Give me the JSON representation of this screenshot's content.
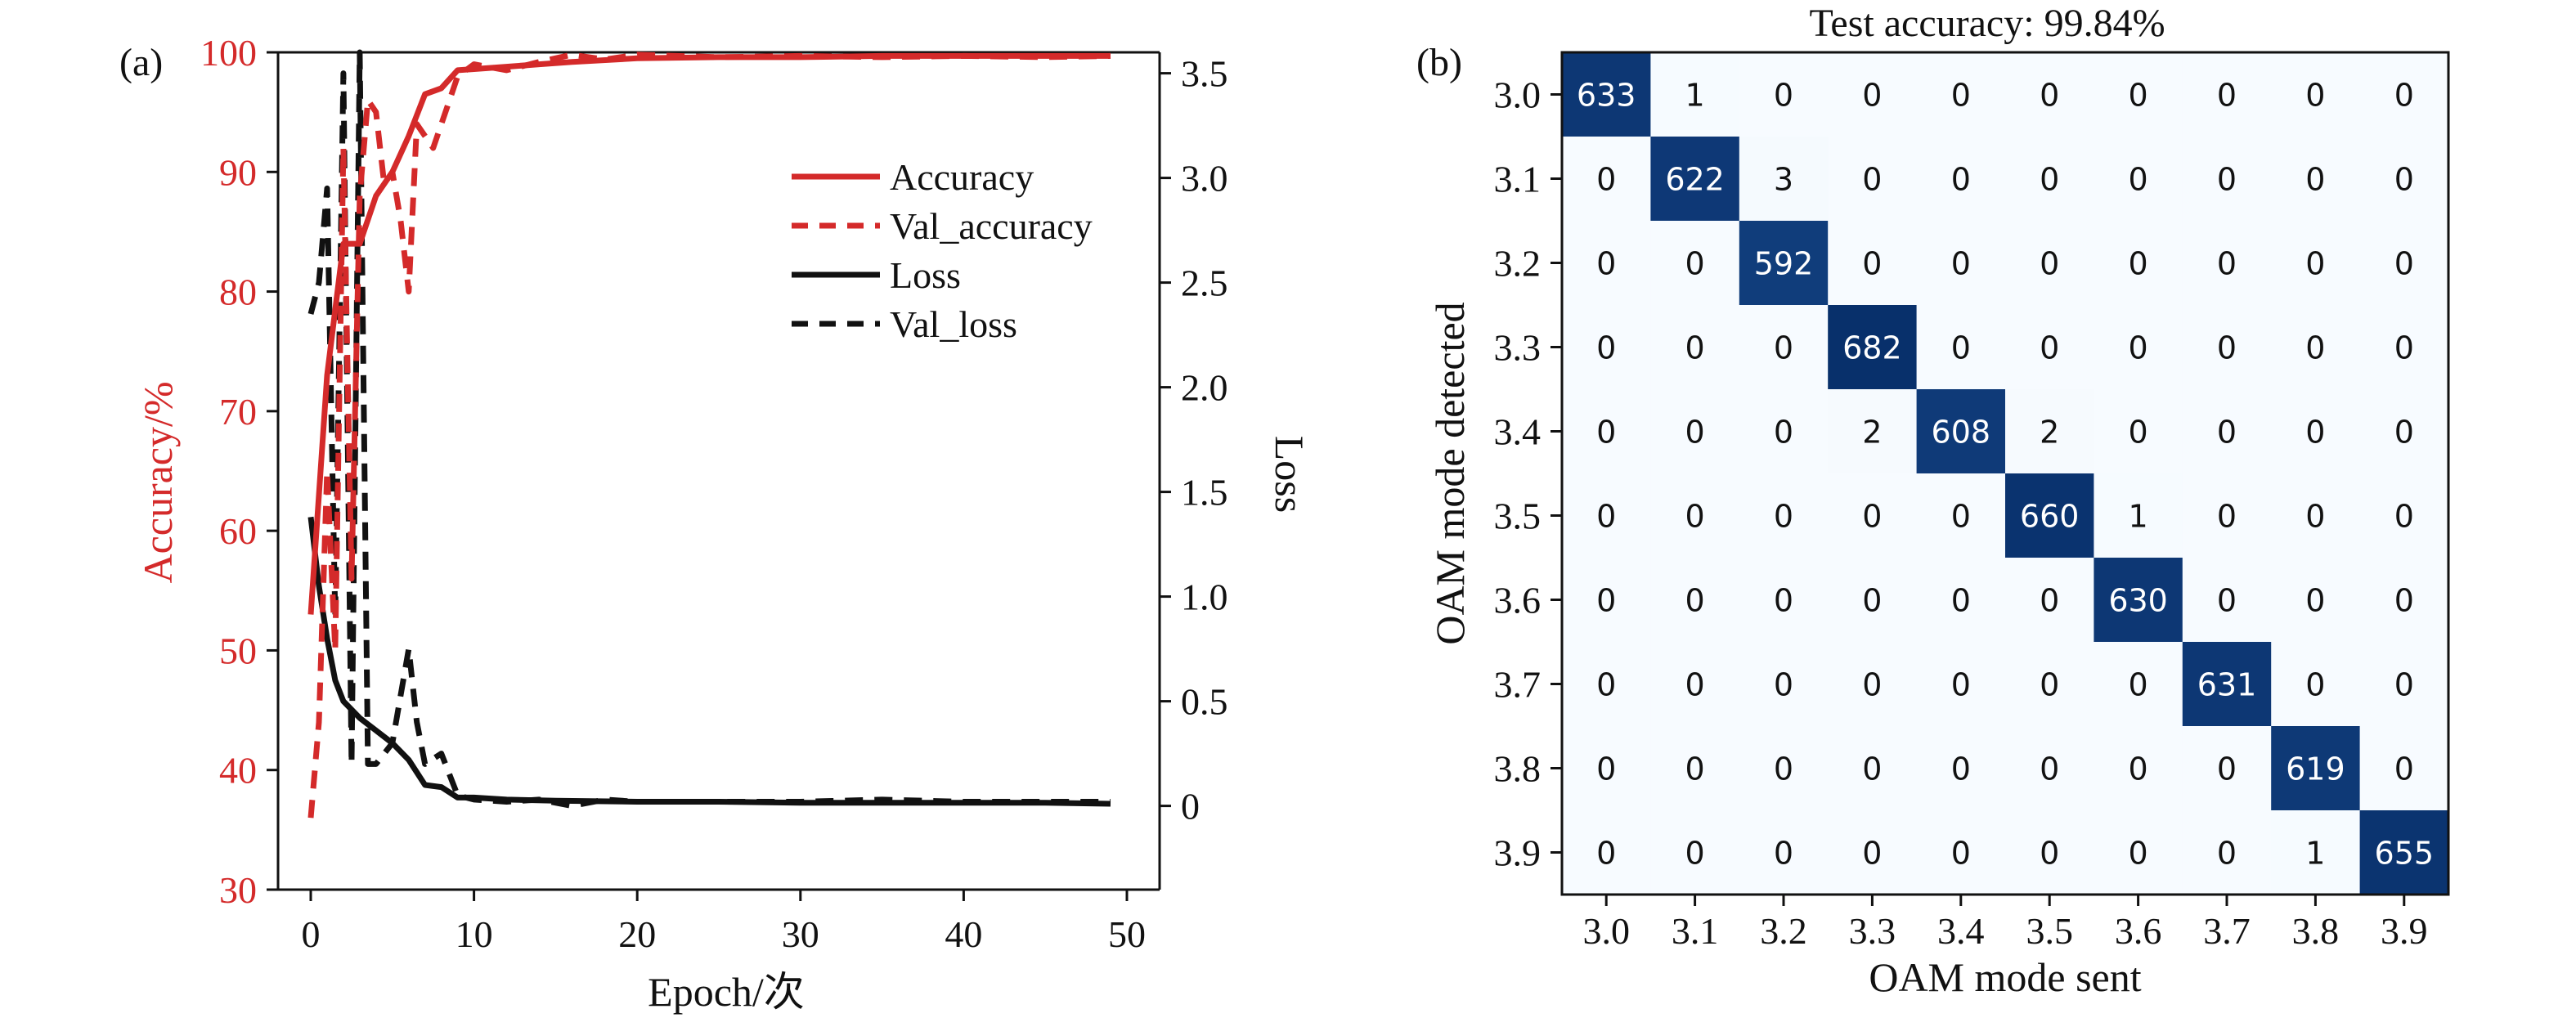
{
  "chart_data": [
    {
      "type": "line",
      "panel_label": "(a)",
      "xlabel": "Epoch/次",
      "ylabel_left": "Accuracy/%",
      "ylabel_right": "Loss",
      "xlim": [
        0,
        50
      ],
      "ylim_left": [
        30,
        100
      ],
      "ylim_right": [
        -0.4,
        3.6
      ],
      "x_ticks": [
        0,
        10,
        20,
        30,
        40,
        50
      ],
      "y_ticks_left": [
        30,
        40,
        50,
        60,
        70,
        80,
        90,
        100
      ],
      "y_ticks_right": [
        0,
        0.5,
        1.0,
        1.5,
        2.0,
        2.5,
        3.0,
        3.5
      ],
      "y_tick_labels_right": [
        "0",
        "0.5",
        "1.0",
        "1.5",
        "2.0",
        "2.5",
        "3.0",
        "3.5"
      ],
      "grid": false,
      "legend_position": "upper-right",
      "left_axis_color": "#d42a2a",
      "series": [
        {
          "name": "Accuracy",
          "axis": "left",
          "color": "#d42a2a",
          "dash": "solid",
          "x": [
            0,
            1,
            2,
            3,
            4,
            5,
            6,
            7,
            8,
            9,
            10,
            12,
            14,
            16,
            20,
            25,
            30,
            35,
            40,
            45,
            49
          ],
          "y": [
            53,
            73,
            84,
            84,
            88,
            90,
            93,
            96.5,
            97,
            98.5,
            98.6,
            98.8,
            99,
            99.2,
            99.5,
            99.6,
            99.6,
            99.7,
            99.7,
            99.7,
            99.7
          ]
        },
        {
          "name": "Val_accuracy",
          "axis": "left",
          "color": "#d42a2a",
          "dash": "dashed",
          "x": [
            0,
            0.5,
            1,
            1.5,
            2,
            2.5,
            3,
            3.5,
            4,
            4.5,
            5,
            5.5,
            6,
            6.5,
            7,
            7.5,
            8,
            8.5,
            9,
            10,
            12,
            14,
            16,
            18,
            20,
            25,
            30,
            35,
            40,
            45,
            49
          ],
          "y": [
            36,
            44,
            65,
            50,
            92,
            56,
            88,
            96,
            95,
            89,
            90,
            86,
            80,
            94,
            93,
            92,
            94,
            96,
            98,
            99,
            98.5,
            99.2,
            99.8,
            99.4,
            99.8,
            99.6,
            99.7,
            99.6,
            99.7,
            99.6,
            99.7
          ]
        },
        {
          "name": "Loss",
          "axis": "right",
          "color": "#111111",
          "dash": "solid",
          "x": [
            0,
            0.5,
            1,
            1.5,
            2,
            3,
            4,
            5,
            6,
            7,
            8,
            9,
            10,
            12,
            15,
            20,
            25,
            30,
            35,
            40,
            45,
            49
          ],
          "y": [
            1.38,
            1.05,
            0.8,
            0.6,
            0.5,
            0.42,
            0.36,
            0.3,
            0.22,
            0.1,
            0.09,
            0.04,
            0.04,
            0.03,
            0.025,
            0.02,
            0.02,
            0.015,
            0.015,
            0.015,
            0.015,
            0.01
          ]
        },
        {
          "name": "Val_loss",
          "axis": "right",
          "color": "#111111",
          "dash": "dashed",
          "x": [
            0,
            0.5,
            1,
            1.5,
            2,
            2.5,
            3,
            3.5,
            4,
            5,
            6,
            6.5,
            7,
            8,
            9,
            10,
            12,
            14,
            16,
            18,
            20,
            25,
            30,
            35,
            40,
            45,
            49
          ],
          "y": [
            2.35,
            2.5,
            2.95,
            0.9,
            3.5,
            0.2,
            3.6,
            0.2,
            0.2,
            0.3,
            0.75,
            0.4,
            0.2,
            0.25,
            0.05,
            0.03,
            0.02,
            0.03,
            0.0,
            0.03,
            0.02,
            0.02,
            0.02,
            0.03,
            0.02,
            0.02,
            0.02
          ]
        }
      ]
    },
    {
      "type": "heatmap",
      "panel_label": "(b)",
      "title": "Test accuracy: 99.84%",
      "xlabel": "OAM mode sent",
      "ylabel": "OAM mode detected",
      "x_categories": [
        "3.0",
        "3.1",
        "3.2",
        "3.3",
        "3.4",
        "3.5",
        "3.6",
        "3.7",
        "3.8",
        "3.9"
      ],
      "y_categories": [
        "3.0",
        "3.1",
        "3.2",
        "3.3",
        "3.4",
        "3.5",
        "3.6",
        "3.7",
        "3.8",
        "3.9"
      ],
      "values": [
        [
          633,
          1,
          0,
          0,
          0,
          0,
          0,
          0,
          0,
          0
        ],
        [
          0,
          622,
          3,
          0,
          0,
          0,
          0,
          0,
          0,
          0
        ],
        [
          0,
          0,
          592,
          0,
          0,
          0,
          0,
          0,
          0,
          0
        ],
        [
          0,
          0,
          0,
          682,
          0,
          0,
          0,
          0,
          0,
          0
        ],
        [
          0,
          0,
          0,
          2,
          608,
          2,
          0,
          0,
          0,
          0
        ],
        [
          0,
          0,
          0,
          0,
          0,
          660,
          1,
          0,
          0,
          0
        ],
        [
          0,
          0,
          0,
          0,
          0,
          0,
          630,
          0,
          0,
          0
        ],
        [
          0,
          0,
          0,
          0,
          0,
          0,
          0,
          631,
          0,
          0
        ],
        [
          0,
          0,
          0,
          0,
          0,
          0,
          0,
          0,
          619,
          0
        ],
        [
          0,
          0,
          0,
          0,
          0,
          0,
          0,
          0,
          1,
          655
        ]
      ],
      "colormap": [
        "#f7fbff",
        "#08306b"
      ]
    }
  ]
}
